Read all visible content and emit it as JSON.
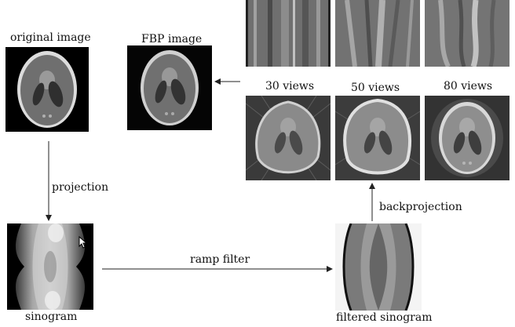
{
  "labels": {
    "original_image": "original image",
    "fbp_image": "FBP image",
    "projection": "projection",
    "sinogram": "sinogram",
    "ramp_filter": "ramp filter",
    "filtered_sinogram": "filtered sinogram",
    "backprojection": "backprojection",
    "views_30": "30 views",
    "views_50": "50 views",
    "views_80": "80 views"
  },
  "colors": {
    "background": "#ffffff",
    "image_black": "#000000",
    "phantom_gray": "#6e6e6e",
    "phantom_rim": "#d9d9d9",
    "arrow": "#222222"
  }
}
